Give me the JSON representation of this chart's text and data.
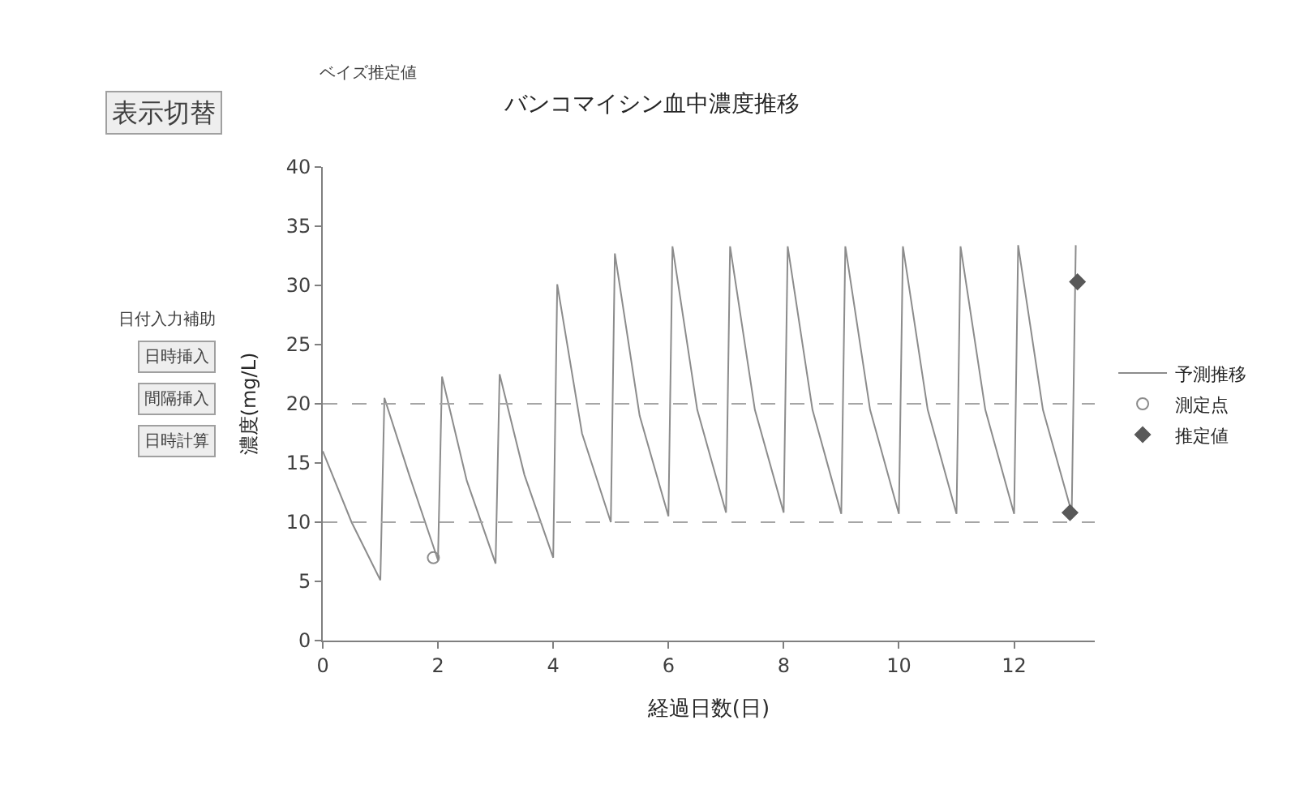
{
  "chart_data": {
    "type": "line",
    "title": "バンコマイシン血中濃度推移",
    "xlabel": "経過日数(日)",
    "ylabel": "濃度(mg/L)",
    "xlim": [
      0,
      13.4
    ],
    "xticks": [
      0,
      2,
      4,
      6,
      8,
      10,
      12
    ],
    "ylim": [
      0,
      40
    ],
    "yticks": [
      0,
      5,
      10,
      15,
      20,
      25,
      30,
      35,
      40
    ],
    "legend": "right",
    "series": [
      {
        "name": "予測推移",
        "color": "#8c8c8c",
        "marker": "none",
        "x": [
          0,
          0.5,
          1.0,
          1.07,
          1.5,
          2.0,
          2.07,
          2.5,
          3.0,
          3.07,
          3.5,
          4.0,
          4.07,
          4.5,
          5.0,
          5.07,
          5.5,
          6.0,
          6.07,
          6.5,
          7.0,
          7.07,
          7.5,
          8.0,
          8.07,
          8.5,
          9.0,
          9.07,
          9.5,
          10.0,
          10.07,
          10.5,
          11.0,
          11.07,
          11.5,
          12.0,
          12.07,
          12.5,
          13.0,
          13.07
        ],
        "values": [
          16,
          10,
          5.1,
          20.5,
          14,
          6.8,
          22.3,
          13.5,
          6.5,
          22.5,
          14,
          7,
          30.1,
          17.5,
          10,
          32.7,
          19,
          10.5,
          33.3,
          19.5,
          10.8,
          33.3,
          19.5,
          10.8,
          33.3,
          19.5,
          10.7,
          33.3,
          19.5,
          10.7,
          33.3,
          19.5,
          10.7,
          33.3,
          19.5,
          10.7,
          33.4,
          19.5,
          10.8,
          33.4
        ]
      },
      {
        "name": "測定点",
        "type": "scatter",
        "color": "#8c8c8c",
        "marker": "circle",
        "x": [
          1.92
        ],
        "values": [
          7.0
        ]
      },
      {
        "name": "推定値",
        "type": "scatter",
        "color": "#595959",
        "marker": "diamond",
        "x": [
          12.97,
          13.1
        ],
        "values": [
          10.8,
          30.3
        ]
      }
    ],
    "ref_lines": [
      {
        "axis": "y",
        "value": 20,
        "color": "#a6a6a6",
        "line_style": "dashed"
      },
      {
        "axis": "y",
        "value": 10,
        "color": "#a6a6a6",
        "line_style": "dashed"
      }
    ],
    "annotations": [
      "表示切替",
      "日付入力補助",
      "日時挿入",
      "間隔挿入",
      "日時計算",
      "ベイズ推定値"
    ]
  }
}
